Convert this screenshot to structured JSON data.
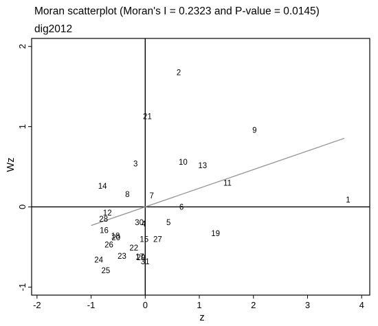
{
  "chart_data": {
    "type": "scatter",
    "title": "Moran scatterplot (Moran's I = 0.2323 and P-value = 0.0145)",
    "subtitle": "dig2012",
    "xlabel": "z",
    "ylabel": "Wz",
    "xlim": [
      -2.1,
      4.15
    ],
    "ylim": [
      -1.1,
      2.1
    ],
    "xticks": [
      "-2",
      "-1",
      "0",
      "1",
      "2",
      "3",
      "4"
    ],
    "yticks": [
      "-1",
      "0",
      "1",
      "2"
    ],
    "points": [
      {
        "label": "1",
        "x": 3.75,
        "y": 0.08
      },
      {
        "label": "2",
        "x": 0.62,
        "y": 1.67
      },
      {
        "label": "3",
        "x": -0.18,
        "y": 0.53
      },
      {
        "label": "4",
        "x": -0.03,
        "y": -0.22
      },
      {
        "label": "5",
        "x": 0.43,
        "y": -0.2
      },
      {
        "label": "6",
        "x": 0.67,
        "y": -0.01
      },
      {
        "label": "7",
        "x": 0.12,
        "y": 0.13
      },
      {
        "label": "8",
        "x": -0.33,
        "y": 0.15
      },
      {
        "label": "9",
        "x": 2.02,
        "y": 0.95
      },
      {
        "label": "10",
        "x": 0.7,
        "y": 0.55
      },
      {
        "label": "11",
        "x": 1.52,
        "y": 0.29
      },
      {
        "label": "12",
        "x": -0.7,
        "y": -0.08
      },
      {
        "label": "13",
        "x": 1.06,
        "y": 0.51
      },
      {
        "label": "14",
        "x": -0.79,
        "y": 0.25
      },
      {
        "label": "15",
        "x": -0.02,
        "y": -0.41
      },
      {
        "label": "16",
        "x": -0.76,
        "y": -0.3
      },
      {
        "label": "17",
        "x": -0.1,
        "y": -0.63
      },
      {
        "label": "18",
        "x": -0.55,
        "y": -0.37
      },
      {
        "label": "19",
        "x": 1.3,
        "y": -0.34
      },
      {
        "label": "20",
        "x": -0.54,
        "y": -0.39
      },
      {
        "label": "21",
        "x": 0.04,
        "y": 1.12
      },
      {
        "label": "22",
        "x": -0.21,
        "y": -0.52
      },
      {
        "label": "23",
        "x": -0.43,
        "y": -0.62
      },
      {
        "label": "24",
        "x": -0.86,
        "y": -0.67
      },
      {
        "label": "25",
        "x": -0.73,
        "y": -0.8
      },
      {
        "label": "26",
        "x": -0.67,
        "y": -0.48
      },
      {
        "label": "27",
        "x": 0.23,
        "y": -0.41
      },
      {
        "label": "28",
        "x": -0.77,
        "y": -0.16
      },
      {
        "label": "29",
        "x": -0.08,
        "y": -0.64
      },
      {
        "label": "30",
        "x": -0.11,
        "y": -0.2
      },
      {
        "label": "31",
        "x": 0.0,
        "y": -0.69
      }
    ],
    "fit_line": {
      "x": [
        -1.0,
        3.68
      ],
      "y": [
        -0.232,
        0.855
      ]
    },
    "colors": {
      "points": "#000000",
      "fit_line": "#999999",
      "axes": "#000000"
    }
  }
}
